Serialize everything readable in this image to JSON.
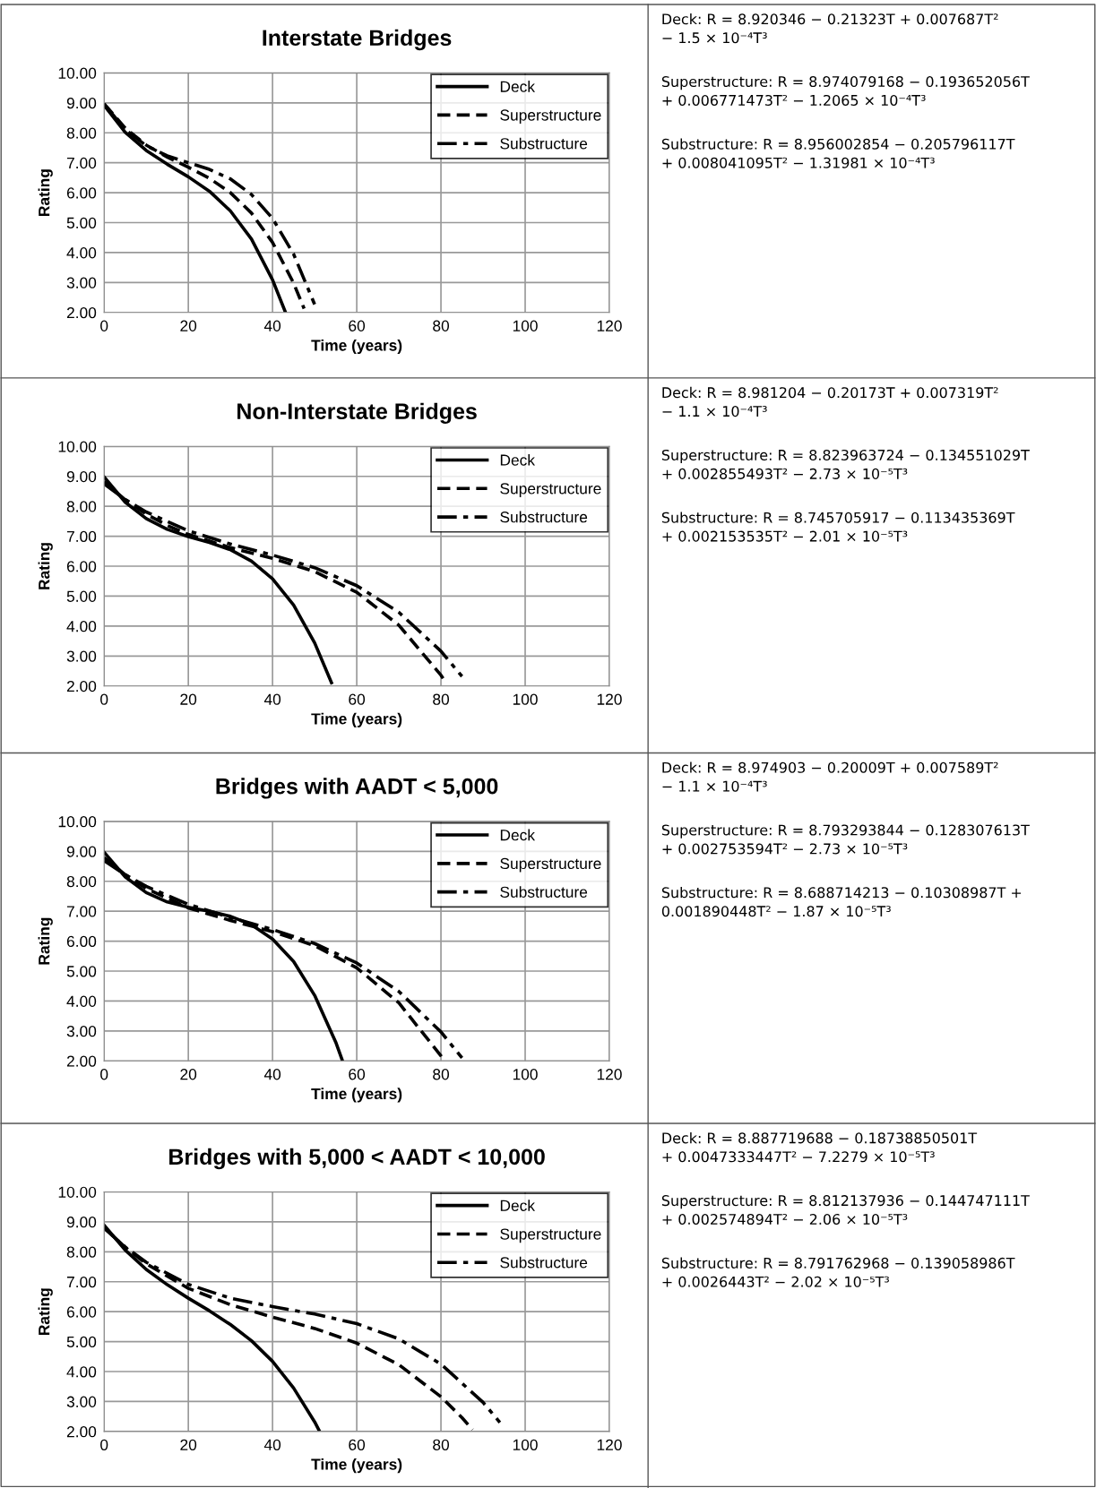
{
  "chart_data": [
    {
      "type": "line",
      "title": "Interstate Bridges",
      "xlabel": "Time (years)",
      "ylabel": "Rating",
      "xlim": [
        0,
        120
      ],
      "xticks": [
        0,
        20,
        40,
        60,
        80,
        100,
        120
      ],
      "ylim": [
        2,
        10
      ],
      "yticks": [
        {
          "value": 2,
          "label": "2.00"
        },
        {
          "value": 3,
          "label": "3.00"
        },
        {
          "value": 4,
          "label": "4.00"
        },
        {
          "value": 5,
          "label": "5.00"
        },
        {
          "value": 6,
          "label": "6.00"
        },
        {
          "value": 7,
          "label": "7.00"
        },
        {
          "value": 8,
          "label": "8.00"
        },
        {
          "value": 9,
          "label": "9.00"
        },
        {
          "value": 10,
          "label": "10.00"
        }
      ],
      "grid": true,
      "legend": "top right",
      "series": [
        {
          "name": "Deck",
          "color": "#000000",
          "line_style": "solid",
          "x": [
            0,
            5,
            10,
            15,
            20,
            25,
            30,
            35,
            40,
            43
          ],
          "values": [
            8.92,
            8.02,
            7.41,
            6.95,
            6.53,
            6.05,
            5.39,
            4.45,
            3.09,
            2.03
          ]
        },
        {
          "name": "Superstructure",
          "color": "#000000",
          "line_style": "dashed",
          "x": [
            0,
            5,
            10,
            15,
            20,
            25,
            30,
            35,
            40,
            45,
            47.5
          ],
          "values": [
            8.97,
            8.16,
            7.59,
            7.19,
            6.85,
            6.48,
            6.0,
            5.32,
            4.34,
            2.98,
            2.13
          ]
        },
        {
          "name": "Substructure",
          "color": "#000000",
          "line_style": "dashdot",
          "x": [
            0,
            5,
            10,
            15,
            20,
            25,
            30,
            35,
            40,
            45,
            50
          ],
          "values": [
            8.96,
            8.11,
            7.57,
            7.23,
            7.0,
            6.78,
            6.46,
            5.94,
            5.14,
            3.95,
            2.27
          ]
        }
      ],
      "annotations": [
        "Deck: R = 8.920346 − 0.21323T + 0.007687T²\n− 1.5 × 10⁻⁴T³",
        "Superstructure: R = 8.974079168 − 0.193652056T\n+ 0.006771473T² − 1.2065 × 10⁻⁴T³",
        "Substructure: R = 8.956002854 − 0.205796117T\n+ 0.008041095T² − 1.31981 × 10⁻⁴T³"
      ]
    },
    {
      "type": "line",
      "title": "Non-Interstate Bridges",
      "xlabel": "Time (years)",
      "ylabel": "Rating",
      "xlim": [
        0,
        120
      ],
      "xticks": [
        0,
        20,
        40,
        60,
        80,
        100,
        120
      ],
      "ylim": [
        2,
        10
      ],
      "yticks": [
        {
          "value": 2,
          "label": "2.00"
        },
        {
          "value": 3,
          "label": "3.00"
        },
        {
          "value": 4,
          "label": "4.00"
        },
        {
          "value": 5,
          "label": "5.00"
        },
        {
          "value": 6,
          "label": "6.00"
        },
        {
          "value": 7,
          "label": "7.00"
        },
        {
          "value": 8,
          "label": "8.00"
        },
        {
          "value": 9,
          "label": "9.00"
        },
        {
          "value": 10,
          "label": "10.00"
        }
      ],
      "grid": true,
      "legend": "top right",
      "series": [
        {
          "name": "Deck",
          "color": "#000000",
          "line_style": "solid",
          "x": [
            0,
            5,
            10,
            15,
            20,
            25,
            30,
            35,
            40,
            45,
            50,
            54
          ],
          "values": [
            8.98,
            8.14,
            7.59,
            7.23,
            6.99,
            6.79,
            6.55,
            6.17,
            5.58,
            4.7,
            3.44,
            2.11
          ]
        },
        {
          "name": "Superstructure",
          "color": "#000000",
          "line_style": "dashed",
          "x": [
            0,
            5,
            10,
            15,
            20,
            30,
            40,
            50,
            60,
            70,
            80,
            81
          ],
          "values": [
            8.82,
            8.22,
            7.74,
            7.36,
            7.06,
            6.62,
            6.26,
            5.82,
            5.13,
            4.03,
            2.36,
            2.15
          ]
        },
        {
          "name": "Substructure",
          "color": "#000000",
          "line_style": "dashdot",
          "x": [
            0,
            5,
            10,
            20,
            30,
            40,
            50,
            60,
            70,
            80,
            85
          ],
          "values": [
            8.75,
            8.23,
            7.81,
            7.18,
            6.74,
            6.37,
            5.95,
            5.35,
            4.46,
            3.16,
            2.32
          ]
        }
      ],
      "annotations": [
        "Deck: R = 8.981204 − 0.20173T + 0.007319T²\n− 1.1 × 10⁻⁴T³",
        "Superstructure: R = 8.823963724 − 0.134551029T\n+ 0.002855493T² − 2.73 × 10⁻⁵T³",
        "Substructure: R = 8.745705917 − 0.113435369T\n+ 0.002153535T² − 2.01 × 10⁻⁵T³"
      ]
    },
    {
      "type": "line",
      "title": "Bridges with AADT < 5,000",
      "xlabel": "Time (years)",
      "ylabel": "Rating",
      "xlim": [
        0,
        120
      ],
      "xticks": [
        0,
        20,
        40,
        60,
        80,
        100,
        120
      ],
      "ylim": [
        2,
        10
      ],
      "yticks": [
        {
          "value": 2,
          "label": "2.00"
        },
        {
          "value": 3,
          "label": "3.00"
        },
        {
          "value": 4,
          "label": "4.00"
        },
        {
          "value": 5,
          "label": "5.00"
        },
        {
          "value": 6,
          "label": "6.00"
        },
        {
          "value": 7,
          "label": "7.00"
        },
        {
          "value": 8,
          "label": "8.00"
        },
        {
          "value": 9,
          "label": "9.00"
        },
        {
          "value": 10,
          "label": "10.00"
        }
      ],
      "grid": true,
      "legend": "top right",
      "series": [
        {
          "name": "Deck",
          "color": "#000000",
          "line_style": "solid",
          "x": [
            0,
            5,
            10,
            15,
            20,
            25,
            30,
            35,
            40,
            45,
            50,
            55,
            56.5
          ],
          "values": [
            8.97,
            8.15,
            7.62,
            7.31,
            7.13,
            7.0,
            6.83,
            6.55,
            6.07,
            5.32,
            4.19,
            2.63,
            2.05
          ]
        },
        {
          "name": "Superstructure",
          "color": "#000000",
          "line_style": "dashed",
          "x": [
            0,
            5,
            10,
            20,
            30,
            40,
            50,
            60,
            70,
            80,
            80.5
          ],
          "values": [
            8.79,
            8.22,
            7.76,
            7.11,
            6.69,
            6.32,
            5.85,
            5.11,
            3.94,
            2.17,
            2.07
          ]
        },
        {
          "name": "Substructure",
          "color": "#000000",
          "line_style": "dashdot",
          "x": [
            0,
            5,
            10,
            20,
            30,
            40,
            50,
            60,
            70,
            80,
            85
          ],
          "values": [
            8.69,
            8.22,
            7.83,
            7.23,
            6.79,
            6.39,
            5.92,
            5.27,
            4.32,
            2.97,
            2.1
          ]
        }
      ],
      "annotations": [
        "Deck: R = 8.974903 − 0.20009T + 0.007589T²\n− 1.1 × 10⁻⁴T³",
        "Superstructure: R = 8.793293844 − 0.128307613T\n+ 0.002753594T² − 2.73 × 10⁻⁵T³",
        "Substructure: R = 8.688714213 − 0.10308987T +\n0.001890448T² − 1.87 × 10⁻⁵T³"
      ]
    },
    {
      "type": "line",
      "title": "Bridges with 5,000 < AADT < 10,000",
      "xlabel": "Time (years)",
      "ylabel": "Rating",
      "xlim": [
        0,
        120
      ],
      "xticks": [
        0,
        20,
        40,
        60,
        80,
        100,
        120
      ],
      "ylim": [
        2,
        10
      ],
      "yticks": [
        {
          "value": 2,
          "label": "2.00"
        },
        {
          "value": 3,
          "label": "3.00"
        },
        {
          "value": 4,
          "label": "4.00"
        },
        {
          "value": 5,
          "label": "5.00"
        },
        {
          "value": 6,
          "label": "6.00"
        },
        {
          "value": 7,
          "label": "7.00"
        },
        {
          "value": 8,
          "label": "8.00"
        },
        {
          "value": 9,
          "label": "9.00"
        },
        {
          "value": 10,
          "label": "10.00"
        }
      ],
      "grid": true,
      "legend": "top right",
      "series": [
        {
          "name": "Deck",
          "color": "#000000",
          "line_style": "solid",
          "x": [
            0,
            5,
            10,
            15,
            20,
            25,
            30,
            35,
            40,
            45,
            50,
            51
          ],
          "values": [
            8.89,
            8.06,
            7.41,
            6.9,
            6.45,
            6.03,
            5.57,
            5.03,
            4.34,
            3.45,
            2.32,
            2.05
          ]
        },
        {
          "name": "Superstructure",
          "color": "#000000",
          "line_style": "dashed",
          "x": [
            0,
            5,
            10,
            20,
            30,
            40,
            50,
            60,
            70,
            80,
            85,
            87.5
          ],
          "values": [
            8.81,
            8.15,
            7.6,
            6.78,
            6.23,
            5.82,
            5.44,
            4.95,
            4.23,
            3.16,
            2.46,
            2.06
          ]
        },
        {
          "name": "Substructure",
          "color": "#000000",
          "line_style": "dashdot",
          "x": [
            0,
            5,
            10,
            20,
            30,
            40,
            50,
            60,
            70,
            80,
            90,
            94
          ],
          "values": [
            8.79,
            8.16,
            7.65,
            6.91,
            6.45,
            6.17,
            5.92,
            5.6,
            5.09,
            4.25,
            2.97,
            2.3
          ]
        }
      ],
      "annotations": [
        "Deck: R = 8.887719688 − 0.18738850501T\n+ 0.0047333447T² − 7.2279 × 10⁻⁵T³",
        "Superstructure: R = 8.812137936 − 0.144747111T\n+ 0.002574894T² − 2.06 × 10⁻⁵T³",
        "Substructure: R = 8.791762968 − 0.139058986T\n+ 0.0026443T² − 2.02 × 10⁻⁵T³"
      ]
    }
  ]
}
